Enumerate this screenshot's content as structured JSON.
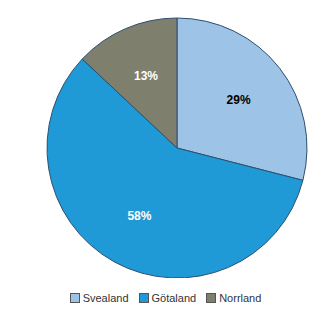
{
  "chart_data": {
    "type": "pie",
    "categories": [
      "Svealand",
      "Götaland",
      "Norrland"
    ],
    "values": [
      29,
      58,
      13
    ],
    "value_labels": [
      "29%",
      "58%",
      "13%"
    ],
    "colors": [
      "#9dc3e6",
      "#1f9ad6",
      "#7f7f6e"
    ],
    "data_labels": true,
    "legend": "bottom"
  }
}
